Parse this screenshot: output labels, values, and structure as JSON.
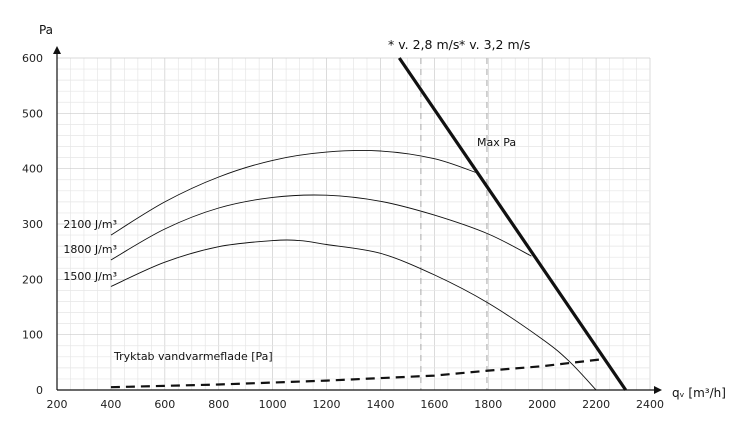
{
  "chart_data": {
    "type": "line",
    "ylabel": "Pa",
    "xlabel": "qᵥ [m³/h]",
    "xlim": [
      200,
      2400
    ],
    "ylim": [
      0,
      600
    ],
    "xticks": [
      200,
      400,
      600,
      800,
      1000,
      1200,
      1400,
      1600,
      1800,
      2000,
      2200,
      2400
    ],
    "yticks": [
      0,
      100,
      200,
      300,
      400,
      500,
      600
    ],
    "grid": true,
    "series": [
      {
        "name": "2100 J/m³",
        "style": "thin",
        "points": [
          [
            400,
            280
          ],
          [
            600,
            340
          ],
          [
            800,
            385
          ],
          [
            1000,
            415
          ],
          [
            1200,
            430
          ],
          [
            1400,
            432
          ],
          [
            1600,
            418
          ],
          [
            1760,
            392
          ]
        ]
      },
      {
        "name": "1800 J/m³",
        "style": "thin",
        "points": [
          [
            400,
            235
          ],
          [
            600,
            291
          ],
          [
            800,
            329
          ],
          [
            1000,
            348
          ],
          [
            1200,
            352
          ],
          [
            1400,
            341
          ],
          [
            1600,
            316
          ],
          [
            1800,
            282
          ],
          [
            1960,
            242
          ]
        ]
      },
      {
        "name": "1500 J/m³",
        "style": "thin",
        "points": [
          [
            400,
            187
          ],
          [
            600,
            231
          ],
          [
            800,
            259
          ],
          [
            1000,
            270
          ],
          [
            1100,
            270
          ],
          [
            1200,
            263
          ],
          [
            1400,
            247
          ],
          [
            1600,
            208
          ],
          [
            1800,
            157
          ],
          [
            2000,
            92
          ],
          [
            2100,
            52
          ],
          [
            2200,
            0
          ]
        ]
      },
      {
        "name": "Tryktab vandvarmeflade [Pa]",
        "style": "dashed",
        "points": [
          [
            400,
            5
          ],
          [
            800,
            10
          ],
          [
            1200,
            17
          ],
          [
            1600,
            26
          ],
          [
            1800,
            35
          ],
          [
            2000,
            43
          ],
          [
            2230,
            56
          ]
        ]
      },
      {
        "name": "Max Pa",
        "style": "thick",
        "points": [
          [
            1470,
            600
          ],
          [
            2310,
            0
          ]
        ]
      }
    ],
    "velocity_lines": [
      {
        "x": 1550,
        "label": "* v. 2,8 m/s"
      },
      {
        "x": 1795,
        "label": "* v. 3,2 m/s"
      }
    ],
    "colors": {
      "line": "#111111",
      "grid": "#d9d9d9",
      "velocity_line": "#aaaaaa"
    }
  }
}
